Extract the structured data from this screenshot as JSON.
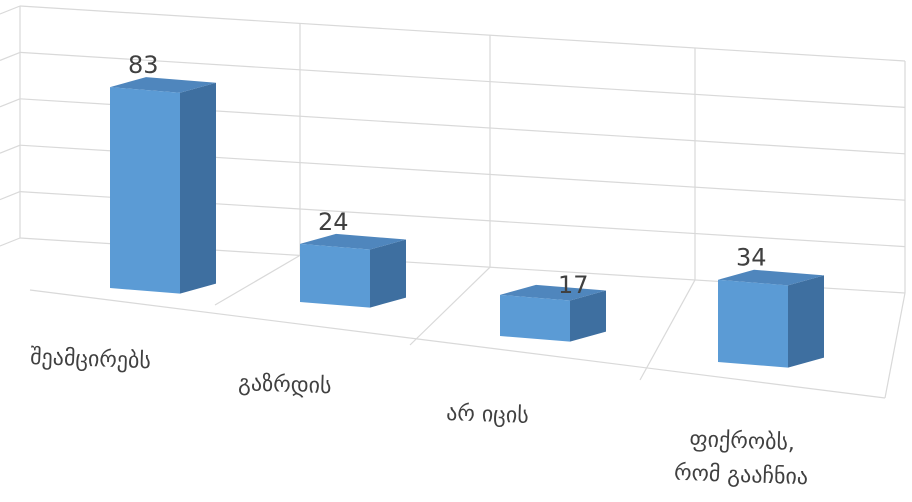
{
  "chart_data": {
    "type": "bar",
    "style": "3d-column",
    "categories": [
      "შეამცირებს",
      "გაზრდის",
      "არ იცის",
      "ფიქრობს, რომ გააჩნია"
    ],
    "category_lines": [
      [
        "შეამცირებს"
      ],
      [
        "გაზრდის"
      ],
      [
        "არ იცის"
      ],
      [
        "ფიქრობს,",
        "რომ გააჩნია"
      ]
    ],
    "values": [
      83,
      24,
      17,
      34
    ],
    "data_labels": [
      "83",
      "24",
      "17",
      "34"
    ],
    "ylim": [
      0,
      100
    ],
    "grid": true,
    "colors": {
      "front": "#5b9bd5",
      "side": "#3e6fa0",
      "top": "#4f86bd",
      "grid": "#d9d9d9",
      "text": "#404040"
    }
  }
}
